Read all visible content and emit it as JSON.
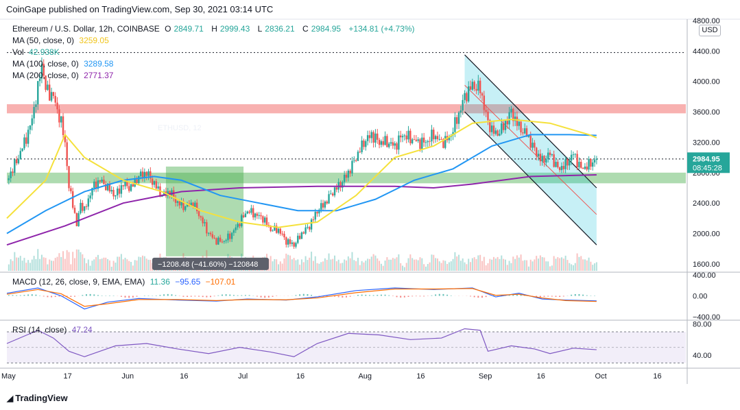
{
  "header": {
    "publisher": "CoinGape published on TradingView.com, Sep 30, 2021 03:14 UTC"
  },
  "symbol": {
    "name": "Ethereum / U.S. Dollar, 12h, COINBASE",
    "open_label": "O",
    "open": "2849.71",
    "high_label": "H",
    "high": "2999.43",
    "low_label": "L",
    "low": "2836.21",
    "close_label": "C",
    "close": "2984.95",
    "change": "+134.81 (+4.73%)"
  },
  "indicators": {
    "ma50": {
      "label": "MA (50, close, 0)",
      "value": "3259.05",
      "color": "#f5e13b"
    },
    "vol": {
      "label": "Vol",
      "value": "42.938K"
    },
    "ma100": {
      "label": "MA (100, close, 0)",
      "value": "3289.58",
      "color": "#2196f3"
    },
    "ma200": {
      "label": "MA (200, close, 0)",
      "value": "2771.37",
      "color": "#8e24aa"
    }
  },
  "currency_button": "USD",
  "price_badge": {
    "price": "2984.95",
    "countdown": "08:45:28",
    "color": "#26a69a"
  },
  "measure_label": "−1208.48 (−41.60%) −120848",
  "macd": {
    "label": "MACD (12, 26, close, 9, EMA, EMA)",
    "hist": "11.36",
    "macd": "−95.65",
    "signal": "−107.01"
  },
  "rsi": {
    "label": "RSI (14, close)",
    "value": "47.24"
  },
  "watermark": "ETHUSD, 12",
  "footer": {
    "brand": "TradingView"
  },
  "chart_data": {
    "type": "candlestick",
    "price_axis": {
      "ticks": [
        "4800.00",
        "4400.00",
        "4000.00",
        "3600.00",
        "3200.00",
        "2800.00",
        "2400.00",
        "2000.00",
        "1600.00"
      ],
      "range": [
        1500,
        4800
      ]
    },
    "macd_axis": {
      "ticks": [
        "400.00",
        "0.00",
        "−400.00"
      ],
      "range": [
        -450,
        450
      ]
    },
    "rsi_axis": {
      "ticks": [
        "80.00",
        "40.00"
      ],
      "range": [
        25,
        85
      ]
    },
    "x_ticks": [
      "May",
      "17",
      "Jun",
      "16",
      "Jul",
      "16",
      "Aug",
      "16",
      "Sep",
      "16",
      "Oct",
      "16"
    ],
    "x_tick_days": [
      0,
      16,
      31,
      46,
      61,
      76,
      92,
      107,
      123,
      138,
      153,
      168
    ],
    "total_days": 175,
    "last_day": 152,
    "price_series": [
      [
        0,
        2700
      ],
      [
        3,
        3000
      ],
      [
        6,
        3400
      ],
      [
        8,
        3900
      ],
      [
        9,
        4250
      ],
      [
        10,
        3900
      ],
      [
        12,
        3800
      ],
      [
        14,
        3450
      ],
      [
        15,
        3200
      ],
      [
        16,
        2600
      ],
      [
        17,
        2400
      ],
      [
        18,
        2100
      ],
      [
        19,
        2400
      ],
      [
        20,
        2300
      ],
      [
        22,
        2600
      ],
      [
        24,
        2700
      ],
      [
        26,
        2600
      ],
      [
        28,
        2500
      ],
      [
        30,
        2650
      ],
      [
        32,
        2600
      ],
      [
        34,
        2750
      ],
      [
        36,
        2800
      ],
      [
        38,
        2650
      ],
      [
        40,
        2500
      ],
      [
        42,
        2550
      ],
      [
        44,
        2400
      ],
      [
        46,
        2350
      ],
      [
        48,
        2400
      ],
      [
        50,
        2200
      ],
      [
        52,
        2000
      ],
      [
        54,
        1900
      ],
      [
        56,
        1900
      ],
      [
        58,
        2000
      ],
      [
        60,
        2150
      ],
      [
        62,
        2300
      ],
      [
        64,
        2250
      ],
      [
        66,
        2200
      ],
      [
        68,
        2050
      ],
      [
        70,
        2050
      ],
      [
        72,
        1900
      ],
      [
        74,
        1850
      ],
      [
        76,
        2000
      ],
      [
        78,
        2100
      ],
      [
        80,
        2300
      ],
      [
        82,
        2400
      ],
      [
        84,
        2550
      ],
      [
        86,
        2650
      ],
      [
        88,
        2800
      ],
      [
        90,
        3000
      ],
      [
        92,
        3200
      ],
      [
        94,
        3300
      ],
      [
        96,
        3200
      ],
      [
        98,
        3200
      ],
      [
        100,
        3150
      ],
      [
        102,
        3300
      ],
      [
        104,
        3250
      ],
      [
        106,
        3200
      ],
      [
        108,
        3200
      ],
      [
        110,
        3300
      ],
      [
        112,
        3200
      ],
      [
        114,
        3250
      ],
      [
        116,
        3500
      ],
      [
        118,
        3800
      ],
      [
        120,
        3950
      ],
      [
        122,
        3900
      ],
      [
        124,
        3450
      ],
      [
        126,
        3300
      ],
      [
        128,
        3400
      ],
      [
        130,
        3600
      ],
      [
        132,
        3400
      ],
      [
        134,
        3300
      ],
      [
        136,
        3100
      ],
      [
        138,
        2950
      ],
      [
        140,
        3050
      ],
      [
        142,
        2850
      ],
      [
        144,
        2900
      ],
      [
        146,
        3050
      ],
      [
        148,
        2850
      ],
      [
        150,
        2900
      ],
      [
        152,
        2985
      ]
    ],
    "ma50": [
      [
        0,
        2200
      ],
      [
        10,
        2700
      ],
      [
        15,
        3300
      ],
      [
        20,
        3000
      ],
      [
        30,
        2700
      ],
      [
        40,
        2550
      ],
      [
        50,
        2300
      ],
      [
        60,
        2150
      ],
      [
        70,
        2080
      ],
      [
        80,
        2150
      ],
      [
        90,
        2500
      ],
      [
        100,
        3000
      ],
      [
        110,
        3150
      ],
      [
        120,
        3450
      ],
      [
        130,
        3500
      ],
      [
        140,
        3450
      ],
      [
        150,
        3300
      ],
      [
        152,
        3259
      ]
    ],
    "ma100": [
      [
        0,
        2000
      ],
      [
        10,
        2300
      ],
      [
        20,
        2550
      ],
      [
        30,
        2700
      ],
      [
        38,
        2750
      ],
      [
        45,
        2700
      ],
      [
        55,
        2500
      ],
      [
        65,
        2400
      ],
      [
        75,
        2300
      ],
      [
        85,
        2300
      ],
      [
        95,
        2450
      ],
      [
        105,
        2700
      ],
      [
        115,
        2850
      ],
      [
        125,
        3150
      ],
      [
        135,
        3300
      ],
      [
        145,
        3300
      ],
      [
        152,
        3290
      ]
    ],
    "ma200": [
      [
        0,
        1850
      ],
      [
        15,
        2100
      ],
      [
        30,
        2400
      ],
      [
        45,
        2550
      ],
      [
        60,
        2600
      ],
      [
        80,
        2620
      ],
      [
        100,
        2620
      ],
      [
        110,
        2600
      ],
      [
        120,
        2650
      ],
      [
        135,
        2750
      ],
      [
        152,
        2771
      ]
    ],
    "macd_line": [
      [
        0,
        50
      ],
      [
        8,
        150
      ],
      [
        14,
        0
      ],
      [
        20,
        -250
      ],
      [
        26,
        -120
      ],
      [
        34,
        -50
      ],
      [
        44,
        -80
      ],
      [
        54,
        -100
      ],
      [
        62,
        -60
      ],
      [
        72,
        -80
      ],
      [
        80,
        -20
      ],
      [
        90,
        100
      ],
      [
        100,
        150
      ],
      [
        110,
        120
      ],
      [
        120,
        150
      ],
      [
        126,
        -20
      ],
      [
        132,
        50
      ],
      [
        138,
        -60
      ],
      [
        144,
        -80
      ],
      [
        152,
        -96
      ]
    ],
    "signal_line": [
      [
        0,
        30
      ],
      [
        8,
        120
      ],
      [
        14,
        40
      ],
      [
        20,
        -200
      ],
      [
        26,
        -150
      ],
      [
        34,
        -70
      ],
      [
        44,
        -70
      ],
      [
        54,
        -90
      ],
      [
        62,
        -70
      ],
      [
        72,
        -75
      ],
      [
        80,
        -40
      ],
      [
        90,
        60
      ],
      [
        100,
        130
      ],
      [
        110,
        130
      ],
      [
        120,
        140
      ],
      [
        126,
        10
      ],
      [
        132,
        30
      ],
      [
        138,
        -40
      ],
      [
        144,
        -90
      ],
      [
        152,
        -107
      ]
    ],
    "rsi_line": [
      [
        0,
        55
      ],
      [
        8,
        72
      ],
      [
        12,
        62
      ],
      [
        16,
        45
      ],
      [
        20,
        38
      ],
      [
        28,
        52
      ],
      [
        36,
        55
      ],
      [
        44,
        48
      ],
      [
        52,
        42
      ],
      [
        60,
        50
      ],
      [
        68,
        44
      ],
      [
        74,
        38
      ],
      [
        80,
        55
      ],
      [
        88,
        68
      ],
      [
        96,
        66
      ],
      [
        104,
        60
      ],
      [
        112,
        62
      ],
      [
        118,
        74
      ],
      [
        122,
        72
      ],
      [
        124,
        45
      ],
      [
        130,
        52
      ],
      [
        136,
        48
      ],
      [
        140,
        42
      ],
      [
        146,
        49
      ],
      [
        152,
        47
      ]
    ],
    "measure_range": {
      "start_day": 41,
      "end_day": 61,
      "top": 2880,
      "bottom": 1700,
      "color": "#4caf50"
    },
    "zones": [
      {
        "name": "resistance",
        "from": 3580,
        "to": 3700,
        "color": "#ef5350"
      },
      {
        "name": "support",
        "from": 2660,
        "to": 2800,
        "color": "#4caf50"
      }
    ],
    "channel": {
      "upper": [
        [
          118,
          4350
        ],
        [
          152,
          2600
        ]
      ],
      "lower": [
        [
          118,
          3600
        ],
        [
          152,
          1850
        ]
      ],
      "mid": [
        [
          118,
          3950
        ],
        [
          152,
          2250
        ]
      ],
      "fill_color": "#00bcd4"
    },
    "dotted_levels": [
      4380,
      2980
    ]
  }
}
